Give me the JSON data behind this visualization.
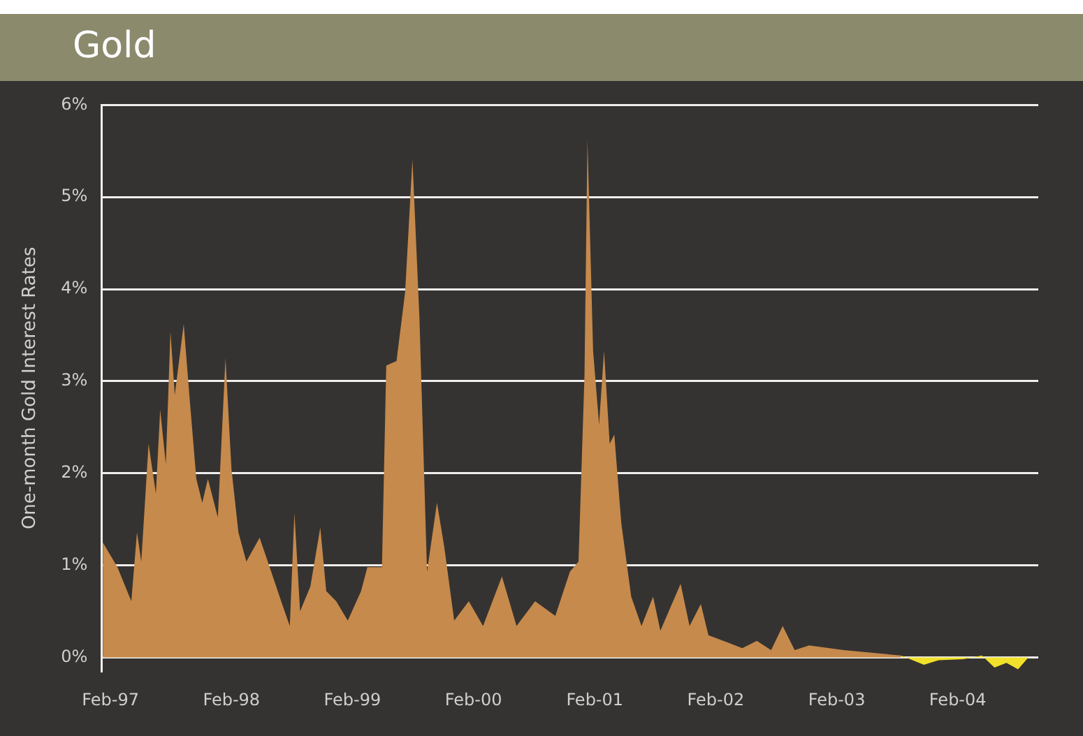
{
  "chart_data": {
    "type": "area",
    "title": "Gold",
    "ylabel": "One-month Gold Interest Rates",
    "xlim": [
      "1997-01-05",
      "2004-10-01"
    ],
    "xticks": [
      {
        "value": "1997-02-01",
        "label": "Feb-97"
      },
      {
        "value": "1998-02-01",
        "label": "Feb-98"
      },
      {
        "value": "1999-02-01",
        "label": "Feb-99"
      },
      {
        "value": "2000-02-01",
        "label": "Feb-00"
      },
      {
        "value": "2001-02-01",
        "label": "Feb-01"
      },
      {
        "value": "2002-02-01",
        "label": "Feb-02"
      },
      {
        "value": "2003-02-01",
        "label": "Feb-03"
      },
      {
        "value": "2004-02-01",
        "label": "Feb-04"
      }
    ],
    "ylim": [
      -0.15,
      6
    ],
    "yticks": [
      {
        "value": 0,
        "label": "0%"
      },
      {
        "value": 1,
        "label": "1%"
      },
      {
        "value": 2,
        "label": "2%"
      },
      {
        "value": 3,
        "label": "3%"
      },
      {
        "value": 4,
        "label": "4%"
      },
      {
        "value": 5,
        "label": "5%"
      },
      {
        "value": 6,
        "label": "6%"
      }
    ],
    "grid": "y",
    "legend": false,
    "marker": "none",
    "series": [
      {
        "color": "#c68a4c",
        "x": [
          "1997-01-09",
          "1997-02-22",
          "1997-04-05",
          "1997-04-22",
          "1997-05-05",
          "1997-05-27",
          "1997-06-18",
          "1997-07-01",
          "1997-07-18",
          "1997-08-01",
          "1997-08-14",
          "1997-09-10",
          "1997-09-27",
          "1997-10-18",
          "1997-11-05",
          "1997-11-22",
          "1997-12-22",
          "1998-01-14",
          "1998-02-01",
          "1998-02-22",
          "1998-03-18",
          "1998-04-27",
          "1998-06-01",
          "1998-07-01",
          "1998-07-27",
          "1998-08-10",
          "1998-08-27",
          "1998-09-27",
          "1998-10-27",
          "1998-11-14",
          "1998-12-14",
          "1999-01-18",
          "1999-02-27",
          "1999-03-18",
          "1999-05-01",
          "1999-05-14",
          "1999-06-14",
          "1999-07-10",
          "1999-08-01",
          "1999-08-22",
          "1999-09-14",
          "1999-10-14",
          "1999-11-05",
          "1999-12-05",
          "2000-01-18",
          "2000-03-01",
          "2000-04-27",
          "2000-06-10",
          "2000-08-05",
          "2000-10-05",
          "2000-11-18",
          "2000-12-14",
          "2001-01-01",
          "2001-01-10",
          "2001-01-27",
          "2001-02-14",
          "2001-03-01",
          "2001-03-18",
          "2001-04-01",
          "2001-04-22",
          "2001-05-22",
          "2001-06-22",
          "2001-07-27",
          "2001-08-18",
          "2001-10-18",
          "2001-11-14",
          "2001-12-18",
          "2002-01-10",
          "2002-03-10",
          "2002-04-22",
          "2002-06-05",
          "2002-07-18",
          "2002-08-22",
          "2002-09-27",
          "2002-11-10",
          "2003-02-22",
          "2003-05-18",
          "2003-08-14"
        ],
        "values": [
          1.25,
          0.98,
          0.61,
          1.36,
          1.04,
          2.32,
          1.78,
          2.69,
          2.1,
          3.54,
          2.85,
          3.62,
          2.85,
          1.94,
          1.68,
          1.94,
          1.52,
          3.25,
          2.05,
          1.36,
          1.04,
          1.3,
          0.93,
          0.61,
          0.34,
          1.57,
          0.5,
          0.77,
          1.41,
          0.72,
          0.61,
          0.4,
          0.72,
          0.98,
          0.98,
          3.17,
          3.22,
          3.97,
          5.41,
          3.7,
          0.93,
          1.68,
          1.2,
          0.4,
          0.61,
          0.34,
          0.88,
          0.34,
          0.61,
          0.45,
          0.93,
          1.04,
          3.06,
          5.62,
          3.33,
          2.53,
          3.33,
          2.32,
          2.42,
          1.46,
          0.66,
          0.34,
          0.66,
          0.29,
          0.8,
          0.34,
          0.58,
          0.24,
          0.16,
          0.1,
          0.18,
          0.08,
          0.34,
          0.08,
          0.13,
          0.08,
          0.05,
          0.02
        ]
      },
      {
        "color": "#f2e12a",
        "x": [
          "2003-08-14",
          "2003-10-22",
          "2003-12-05",
          "2004-02-18",
          "2004-04-14",
          "2004-05-22",
          "2004-06-27",
          "2004-08-01",
          "2004-09-01"
        ],
        "values": [
          0.02,
          -0.08,
          -0.03,
          -0.02,
          0.02,
          -0.11,
          -0.06,
          -0.13,
          0
        ]
      }
    ]
  }
}
